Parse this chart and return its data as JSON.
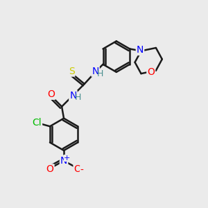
{
  "bg_color": "#ebebeb",
  "bond_color": "#1a1a1a",
  "bond_width": 1.8,
  "atom_colors": {
    "N": "#0000ff",
    "O": "#ff0000",
    "S": "#cccc00",
    "Cl": "#00bb00",
    "H": "#4a9090",
    "C": "#1a1a1a"
  },
  "font_size": 10,
  "fig_size": [
    3.0,
    3.0
  ],
  "dpi": 100,
  "xlim": [
    0,
    10
  ],
  "ylim": [
    0,
    10
  ]
}
